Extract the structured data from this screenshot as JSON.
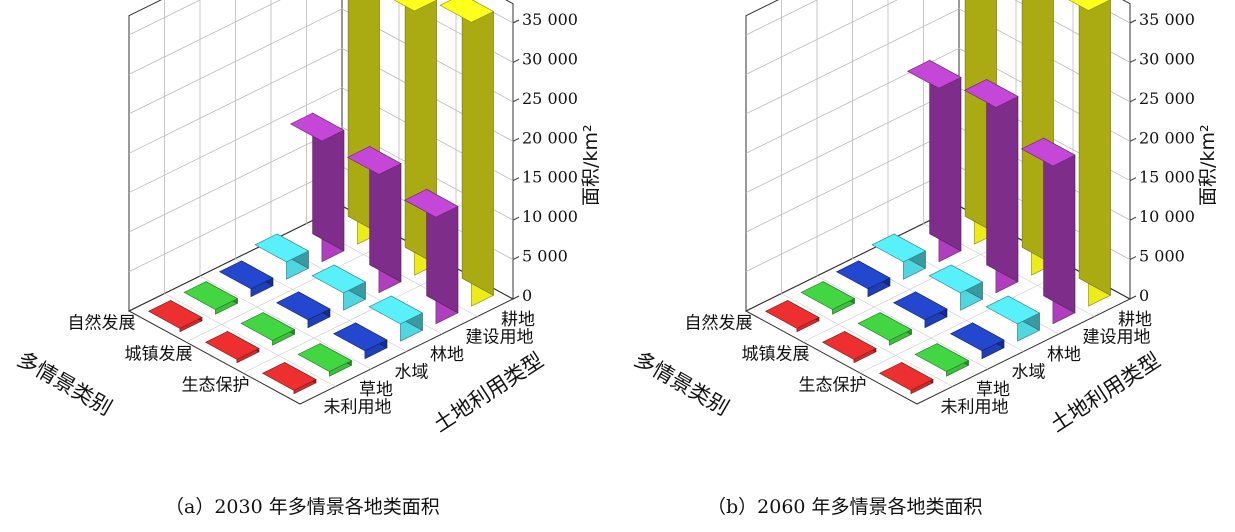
{
  "panels": [
    {
      "caption": "（a）2030 年多情景各地类面积",
      "chart_data": {
        "type": "bar3d",
        "title": "",
        "zlabel": "面积/km²",
        "xlabel": "土地利用类型",
        "ylabel": "多情景类别",
        "categories": [
          "未利用地",
          "草地",
          "水域",
          "林地",
          "建设用地",
          "耕地"
        ],
        "scenarios": [
          "生态保护",
          "城镇发展",
          "自然发展"
        ],
        "zlim": [
          0,
          35000
        ],
        "zticks": [
          "0",
          "5 000",
          "10 000",
          "15 000",
          "20 000",
          "25 000",
          "30 000",
          "35 000"
        ],
        "series": [
          {
            "name": "生态保护",
            "values": [
              200,
              600,
              1000,
              2200,
              13500,
              36000
            ]
          },
          {
            "name": "城镇发展",
            "values": [
              200,
              600,
              1000,
              2200,
              15000,
              33500
            ]
          },
          {
            "name": "自然发展",
            "values": [
              200,
              600,
              1000,
              2200,
              15300,
              33200
            ]
          }
        ],
        "colors": [
          "#d42a2a",
          "#3cbf3c",
          "#1f3fb8",
          "#4fd6e0",
          "#b03fc0",
          "#ecec1a"
        ]
      }
    },
    {
      "caption": "（b）2060 年多情景各地类面积",
      "chart_data": {
        "type": "bar3d",
        "title": "",
        "zlabel": "面积/km²",
        "xlabel": "土地利用类型",
        "ylabel": "多情景类别",
        "categories": [
          "未利用地",
          "草地",
          "水域",
          "林地",
          "建设用地",
          "耕地"
        ],
        "scenarios": [
          "生态保护",
          "城镇发展",
          "自然发展"
        ],
        "zlim": [
          0,
          35000
        ],
        "zticks": [
          "0",
          "5 000",
          "10 000",
          "15 000",
          "20 000",
          "25 000",
          "30 000",
          "35 000"
        ],
        "series": [
          {
            "name": "生态保护",
            "values": [
              200,
              600,
              1000,
              2200,
              20000,
              37500
            ]
          },
          {
            "name": "城镇发展",
            "values": [
              200,
              600,
              1000,
              2200,
              23500,
              35000
            ]
          },
          {
            "name": "自然发展",
            "values": [
              200,
              600,
              1000,
              2200,
              22000,
              32500
            ]
          }
        ],
        "colors": [
          "#d42a2a",
          "#3cbf3c",
          "#1f3fb8",
          "#4fd6e0",
          "#b03fc0",
          "#ecec1a"
        ]
      }
    }
  ]
}
